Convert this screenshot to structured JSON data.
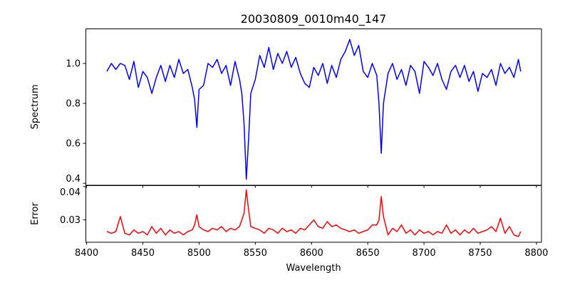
{
  "chart_data": [
    {
      "type": "line",
      "title": "20030809_0010m40_147",
      "xlabel": "",
      "ylabel": "Spectrum",
      "xlim": [
        8399,
        8804.5
      ],
      "ylim": [
        0.39,
        1.175
      ],
      "yticks": [
        0.4,
        0.6,
        0.8,
        1.0
      ],
      "ytick_labels": [
        "0.4",
        "0.6",
        "0.8",
        "1.0"
      ],
      "grid": false,
      "series": [
        {
          "name": "Spectrum",
          "color": "#0000ff",
          "x": [
            8418,
            8422,
            8426,
            8430,
            8434,
            8438,
            8442,
            8446,
            8450,
            8454,
            8458,
            8462,
            8466,
            8470,
            8474,
            8478,
            8482,
            8486,
            8490,
            8494,
            8496,
            8498,
            8500,
            8504,
            8508,
            8512,
            8516,
            8520,
            8524,
            8528,
            8532,
            8536,
            8538,
            8540,
            8542,
            8544,
            8546,
            8550,
            8554,
            8558,
            8562,
            8566,
            8570,
            8574,
            8578,
            8582,
            8586,
            8590,
            8594,
            8598,
            8602,
            8606,
            8610,
            8614,
            8618,
            8622,
            8626,
            8630,
            8634,
            8638,
            8642,
            8646,
            8650,
            8654,
            8658,
            8660,
            8662,
            8664,
            8668,
            8672,
            8676,
            8680,
            8684,
            8688,
            8692,
            8696,
            8700,
            8704,
            8708,
            8712,
            8716,
            8720,
            8724,
            8728,
            8732,
            8736,
            8740,
            8744,
            8748,
            8752,
            8756,
            8760,
            8764,
            8768,
            8772,
            8776,
            8780,
            8784,
            8786
          ],
          "y": [
            0.96,
            1.0,
            0.97,
            1.0,
            0.99,
            0.92,
            1.01,
            0.88,
            0.96,
            0.93,
            0.85,
            0.93,
            0.99,
            0.91,
            0.99,
            0.93,
            1.02,
            0.95,
            0.97,
            0.88,
            0.82,
            0.68,
            0.87,
            0.89,
            1.0,
            0.98,
            1.02,
            0.95,
            0.99,
            0.89,
            1.01,
            0.92,
            0.85,
            0.7,
            0.42,
            0.62,
            0.85,
            0.92,
            1.04,
            0.98,
            1.08,
            0.97,
            1.05,
            1.0,
            1.06,
            0.98,
            1.03,
            0.95,
            0.9,
            0.88,
            0.98,
            0.94,
            1.0,
            0.9,
            0.99,
            0.93,
            1.02,
            1.06,
            1.12,
            1.04,
            1.09,
            0.96,
            0.93,
            1.0,
            0.94,
            0.8,
            0.55,
            0.8,
            0.95,
            1.0,
            0.92,
            0.97,
            0.89,
            0.99,
            0.96,
            0.85,
            1.01,
            0.98,
            0.94,
            1.0,
            0.92,
            0.87,
            0.96,
            0.99,
            0.93,
            0.99,
            0.91,
            0.96,
            0.86,
            0.95,
            0.93,
            0.97,
            0.89,
            1.0,
            0.95,
            0.98,
            0.93,
            1.02,
            0.96
          ]
        }
      ]
    },
    {
      "type": "line",
      "title": "",
      "xlabel": "Wavelength",
      "ylabel": "Error",
      "xlim": [
        8399,
        8804.5
      ],
      "ylim": [
        0.0233,
        0.0404
      ],
      "xticks": [
        8400,
        8450,
        8500,
        8550,
        8600,
        8650,
        8700,
        8750,
        8800
      ],
      "xtick_labels": [
        "8400",
        "8450",
        "8500",
        "8550",
        "8600",
        "8650",
        "8700",
        "8750",
        "8800"
      ],
      "yticks": [
        0.03,
        0.04
      ],
      "ytick_labels": [
        "0.03",
        "0.04"
      ],
      "grid": false,
      "series": [
        {
          "name": "Error",
          "color": "#ff0000",
          "x": [
            8418,
            8422,
            8426,
            8430,
            8434,
            8438,
            8442,
            8446,
            8450,
            8454,
            8458,
            8462,
            8466,
            8470,
            8474,
            8478,
            8482,
            8486,
            8490,
            8494,
            8496,
            8498,
            8500,
            8504,
            8508,
            8512,
            8516,
            8520,
            8524,
            8528,
            8532,
            8536,
            8538,
            8540,
            8542,
            8544,
            8546,
            8550,
            8554,
            8558,
            8562,
            8566,
            8570,
            8574,
            8578,
            8582,
            8586,
            8590,
            8594,
            8598,
            8602,
            8606,
            8610,
            8614,
            8618,
            8622,
            8626,
            8630,
            8634,
            8638,
            8642,
            8646,
            8650,
            8654,
            8658,
            8660,
            8662,
            8664,
            8668,
            8672,
            8676,
            8680,
            8684,
            8688,
            8692,
            8696,
            8700,
            8704,
            8708,
            8712,
            8716,
            8720,
            8724,
            8728,
            8732,
            8736,
            8740,
            8744,
            8748,
            8752,
            8756,
            8760,
            8764,
            8768,
            8772,
            8776,
            8780,
            8784,
            8786
          ],
          "y": [
            0.0265,
            0.026,
            0.0265,
            0.031,
            0.026,
            0.0255,
            0.027,
            0.026,
            0.0265,
            0.0255,
            0.028,
            0.026,
            0.0275,
            0.0255,
            0.027,
            0.026,
            0.0265,
            0.0255,
            0.0265,
            0.027,
            0.0285,
            0.0315,
            0.028,
            0.027,
            0.0265,
            0.0275,
            0.027,
            0.028,
            0.0265,
            0.0275,
            0.027,
            0.028,
            0.03,
            0.032,
            0.039,
            0.033,
            0.028,
            0.0275,
            0.027,
            0.026,
            0.0275,
            0.027,
            0.026,
            0.0275,
            0.0265,
            0.027,
            0.026,
            0.0275,
            0.027,
            0.0285,
            0.03,
            0.028,
            0.0275,
            0.0295,
            0.028,
            0.0285,
            0.0275,
            0.027,
            0.0265,
            0.027,
            0.026,
            0.0265,
            0.027,
            0.0285,
            0.0285,
            0.03,
            0.037,
            0.031,
            0.0255,
            0.0275,
            0.0265,
            0.0285,
            0.026,
            0.027,
            0.0255,
            0.027,
            0.026,
            0.0265,
            0.0255,
            0.0265,
            0.026,
            0.0285,
            0.026,
            0.027,
            0.0255,
            0.027,
            0.026,
            0.0275,
            0.026,
            0.0265,
            0.027,
            0.028,
            0.0265,
            0.0305,
            0.026,
            0.028,
            0.0255,
            0.025,
            0.0265
          ]
        }
      ]
    }
  ]
}
